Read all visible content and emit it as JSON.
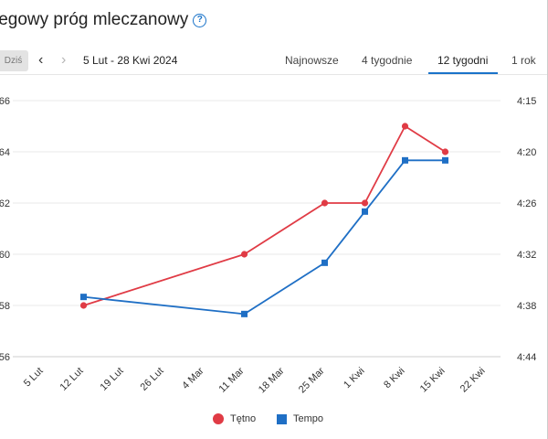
{
  "header": {
    "title": "iegowy próg mleczanowy",
    "help_icon": "help-circle-icon"
  },
  "toolbar": {
    "today_label": "Dziś",
    "prev_icon": "chevron-left-icon",
    "next_icon": "chevron-right-icon",
    "date_range": "5 Lut - 28 Kwi 2024",
    "tabs": [
      {
        "label": "Najnowsze",
        "active": false
      },
      {
        "label": "4 tygodnie",
        "active": false
      },
      {
        "label": "12 tygodni",
        "active": true
      },
      {
        "label": "1 rok",
        "active": false
      }
    ],
    "accent_color": "#1a73c9"
  },
  "chart_data": {
    "type": "line",
    "x_categories": [
      "5 Lut",
      "12 Lut",
      "19 Lut",
      "26 Lut",
      "4 Mar",
      "11 Mar",
      "18 Mar",
      "25 Mar",
      "1 Kwi",
      "8 Kwi",
      "15 Kwi",
      "22 Kwi"
    ],
    "left_axis": {
      "ticks": [
        "56",
        "58",
        "60",
        "62",
        "64",
        "66"
      ],
      "ylim": [
        56,
        66
      ]
    },
    "right_axis": {
      "ticks": [
        "4:44",
        "4:38",
        "4:32",
        "4:26",
        "4:20",
        "4:15"
      ],
      "note_order": "bottom-to-top"
    },
    "grid": true,
    "legend_placement": "bottom-center",
    "series": [
      {
        "name": "Tętno",
        "color": "#e03b45",
        "marker": "circle",
        "axis": "left",
        "points": [
          {
            "x": "12 Lut",
            "y": 58.0
          },
          {
            "x": "11 Mar",
            "y": 60.0
          },
          {
            "x": "25 Mar",
            "y": 62.0
          },
          {
            "x": "1 Kwi",
            "y": 62.0
          },
          {
            "x": "8 Kwi",
            "y": 65.0
          },
          {
            "x": "15 Kwi",
            "y": 64.0
          }
        ]
      },
      {
        "name": "Tempo",
        "color": "#1f6fc5",
        "marker": "square",
        "axis": "right",
        "points": [
          {
            "x": "12 Lut",
            "y": "4:37"
          },
          {
            "x": "11 Mar",
            "y": "4:39"
          },
          {
            "x": "25 Mar",
            "y": "4:33"
          },
          {
            "x": "1 Kwi",
            "y": "4:27"
          },
          {
            "x": "8 Kwi",
            "y": "4:21"
          },
          {
            "x": "15 Kwi",
            "y": "4:21"
          }
        ]
      }
    ]
  }
}
